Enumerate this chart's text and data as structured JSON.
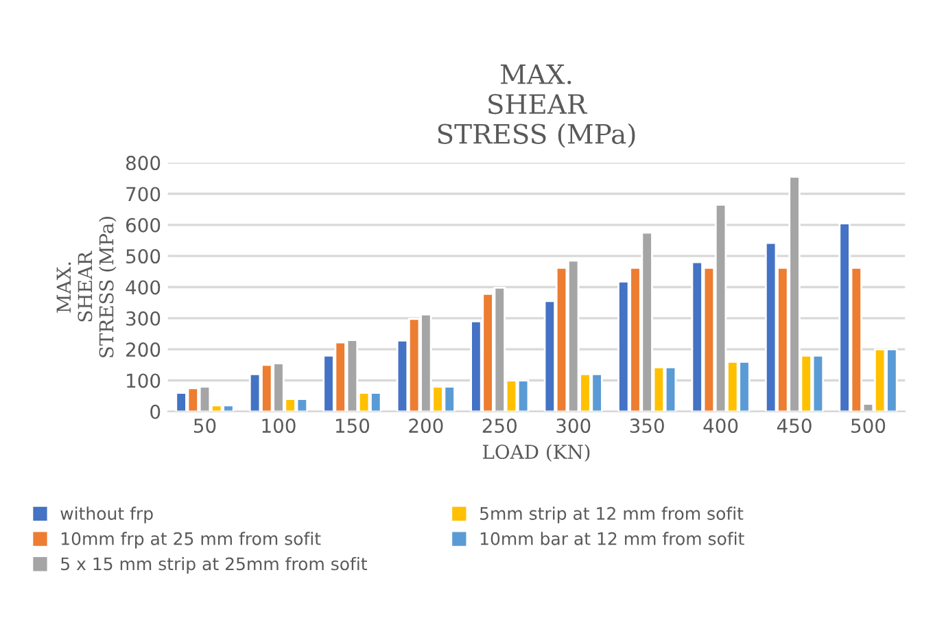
{
  "chart_data": {
    "type": "bar",
    "title": "MAX.\nSHEAR\nSTRESS (MPa)",
    "xlabel": "LOAD (KN)",
    "ylabel": "MAX.\nSHEAR\nSTRESS (MPa)",
    "categories": [
      "50",
      "100",
      "150",
      "200",
      "250",
      "300",
      "350",
      "400",
      "450",
      "500"
    ],
    "series": [
      {
        "name": "without frp",
        "color": "#4472c4",
        "values": [
          60,
          120,
          180,
          228,
          290,
          355,
          418,
          480,
          542,
          605
        ]
      },
      {
        "name": "10mm frp at 25 mm from sofit",
        "color": "#ed7d31",
        "values": [
          75,
          150,
          222,
          298,
          378,
          462,
          462,
          462,
          462,
          462
        ]
      },
      {
        "name": "5 x 15 mm strip at 25mm from sofit",
        "color": "#a5a5a5",
        "values": [
          80,
          155,
          230,
          312,
          398,
          485,
          575,
          665,
          755,
          25
        ]
      },
      {
        "name": "5mm strip at 12 mm from sofit",
        "color": "#ffc000",
        "values": [
          20,
          40,
          60,
          80,
          100,
          120,
          142,
          160,
          180,
          200
        ]
      },
      {
        "name": "10mm bar at 12 mm from sofit",
        "color": "#5b9bd5",
        "values": [
          20,
          40,
          60,
          80,
          100,
          120,
          142,
          160,
          180,
          200
        ]
      }
    ],
    "ylim": [
      0,
      800
    ],
    "yticks": [
      0,
      100,
      200,
      300,
      400,
      500,
      600,
      700,
      800
    ],
    "grid": "y",
    "legend": "bottom"
  }
}
